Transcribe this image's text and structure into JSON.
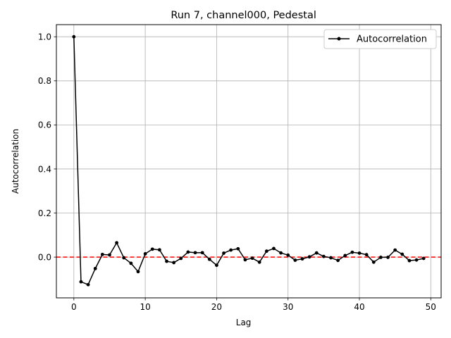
{
  "chart_data": {
    "type": "line",
    "title": "Run 7, channel000, Pedestal",
    "xlabel": "Lag",
    "ylabel": "Autocorrelation",
    "xlim": [
      -2.45,
      51.45
    ],
    "ylim": [
      -0.185,
      1.055
    ],
    "xticks": [
      0,
      10,
      20,
      30,
      40,
      50
    ],
    "yticks": [
      0.0,
      0.2,
      0.4,
      0.6,
      0.8,
      1.0
    ],
    "xtick_labels": [
      "0",
      "10",
      "20",
      "30",
      "40",
      "50"
    ],
    "ytick_labels": [
      "0.0",
      "0.2",
      "0.4",
      "0.6",
      "0.8",
      "1.0"
    ],
    "grid": true,
    "legend_position": "top-right",
    "series": [
      {
        "name": "Autocorrelation",
        "color": "#000000",
        "marker": "circle",
        "x": [
          0,
          1,
          2,
          3,
          4,
          5,
          6,
          7,
          8,
          9,
          10,
          11,
          12,
          13,
          14,
          15,
          16,
          17,
          18,
          19,
          20,
          21,
          22,
          23,
          24,
          25,
          26,
          27,
          28,
          29,
          30,
          31,
          32,
          33,
          34,
          35,
          36,
          37,
          38,
          39,
          40,
          41,
          42,
          43,
          44,
          45,
          46,
          47,
          48,
          49
        ],
        "values": [
          1.0,
          -0.112,
          -0.125,
          -0.052,
          0.012,
          0.01,
          0.065,
          -0.003,
          -0.028,
          -0.066,
          0.015,
          0.036,
          0.033,
          -0.019,
          -0.025,
          -0.006,
          0.023,
          0.02,
          0.02,
          -0.01,
          -0.037,
          0.018,
          0.032,
          0.038,
          -0.012,
          -0.005,
          -0.023,
          0.027,
          0.039,
          0.019,
          0.009,
          -0.014,
          -0.008,
          0.001,
          0.019,
          0.003,
          -0.003,
          -0.015,
          0.007,
          0.022,
          0.018,
          0.011,
          -0.023,
          -0.001,
          -0.001,
          0.032,
          0.013,
          -0.016,
          -0.013,
          -0.006
        ]
      }
    ],
    "reference_line": {
      "y": 0.0,
      "color": "#ff0000",
      "style": "dashed"
    }
  }
}
